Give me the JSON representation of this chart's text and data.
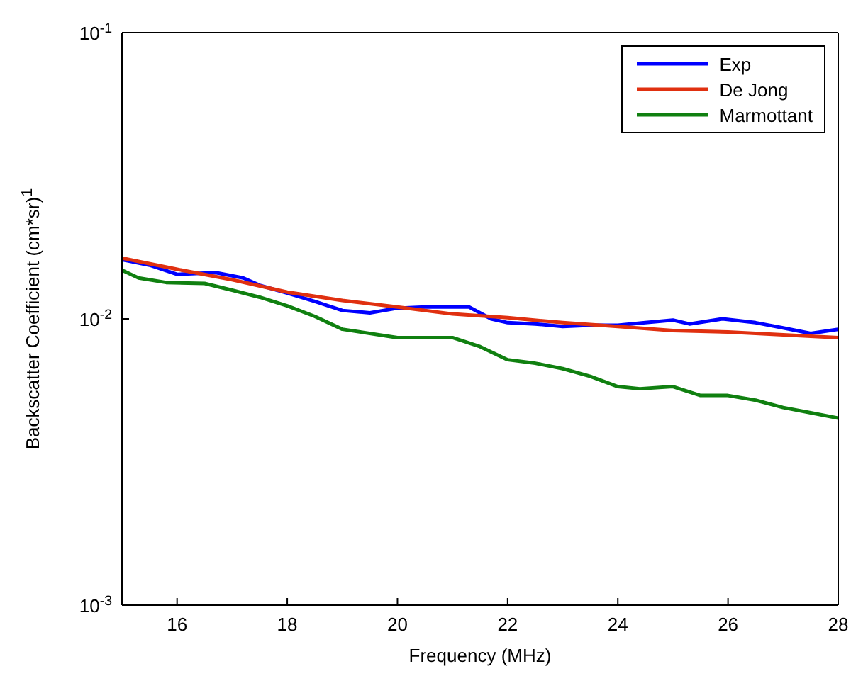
{
  "chart_data": {
    "type": "line",
    "xlabel": "Frequency (MHz)",
    "ylabel": "Backscatter Coefficient (cm*sr)$^{1}$",
    "log": "y",
    "xlim": [
      15,
      28
    ],
    "xticks": [
      16,
      18,
      20,
      22,
      24,
      26,
      28
    ],
    "ylim": [
      0.001,
      0.1
    ],
    "yticks": [
      {
        "value": 0.001,
        "label": "10$^{-3}$"
      },
      {
        "value": 0.01,
        "label": "10$^{-2}$"
      },
      {
        "value": 0.1,
        "label": "10$^{-1}$"
      }
    ],
    "grid": false,
    "legend": "top right",
    "marker": "none",
    "line_style": "solid",
    "series": [
      {
        "name": "Exp",
        "color": "#0000ff",
        "x": [
          15,
          15.5,
          16,
          16.7,
          17.2,
          17.5,
          18,
          18.5,
          19,
          19.5,
          20,
          20.5,
          21,
          21.3,
          21.7,
          22,
          22.5,
          23,
          23.5,
          24,
          24.5,
          25,
          25.3,
          25.9,
          26.5,
          27,
          27.5,
          28
        ],
        "values": [
          0.0161,
          0.0154,
          0.0143,
          0.0145,
          0.0139,
          0.0131,
          0.0123,
          0.0115,
          0.0107,
          0.0105,
          0.0109,
          0.011,
          0.011,
          0.011,
          0.01,
          0.0097,
          0.0096,
          0.0094,
          0.0095,
          0.0095,
          0.0097,
          0.0099,
          0.0096,
          0.01,
          0.0097,
          0.0093,
          0.0089,
          0.0092
        ]
      },
      {
        "name": "De Jong",
        "color": "#e03010",
        "x": [
          15,
          16,
          17,
          18,
          19,
          20,
          21,
          22,
          23,
          24,
          25,
          26,
          27,
          28
        ],
        "values": [
          0.0163,
          0.0149,
          0.0137,
          0.0124,
          0.0116,
          0.011,
          0.0104,
          0.0101,
          0.0097,
          0.0094,
          0.0091,
          0.009,
          0.0088,
          0.0086
        ]
      },
      {
        "name": "Marmottant",
        "color": "#108010",
        "x": [
          15,
          15.3,
          15.8,
          16.5,
          17,
          17.5,
          18,
          18.5,
          19,
          20,
          21,
          21.5,
          22,
          22.5,
          23,
          23.5,
          24,
          24.4,
          25,
          25.5,
          26,
          26.5,
          27,
          27.5,
          28
        ],
        "values": [
          0.0148,
          0.0139,
          0.0134,
          0.0133,
          0.0126,
          0.0119,
          0.0111,
          0.0102,
          0.0092,
          0.0086,
          0.0086,
          0.008,
          0.0072,
          0.007,
          0.0067,
          0.0063,
          0.0058,
          0.0057,
          0.0058,
          0.0054,
          0.0054,
          0.0052,
          0.0049,
          0.0047,
          0.0045
        ]
      }
    ]
  }
}
